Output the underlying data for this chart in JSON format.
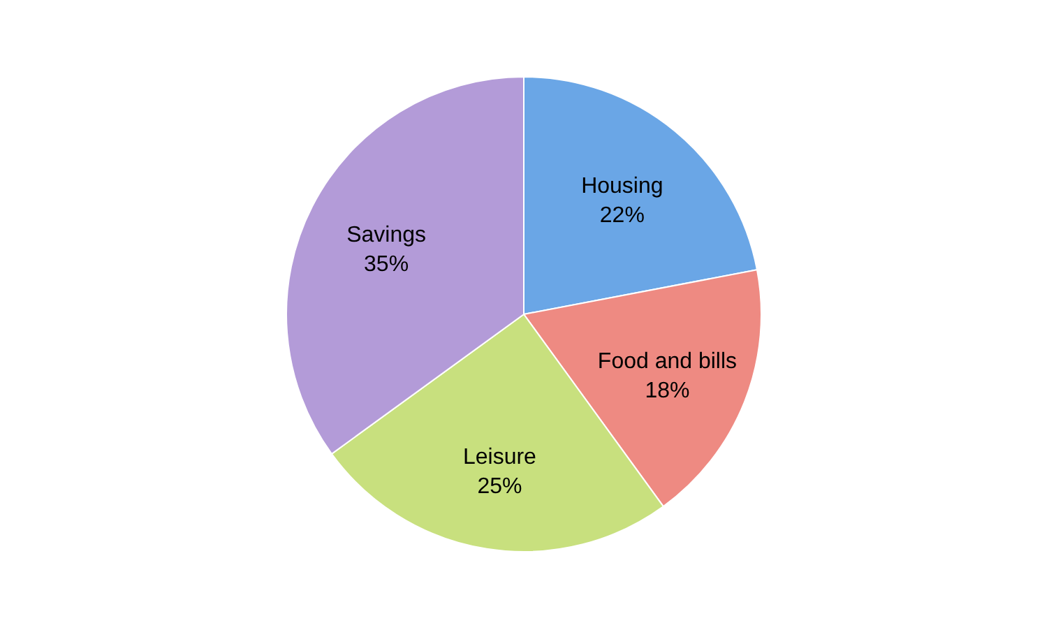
{
  "chart_data": {
    "type": "pie",
    "categories": [
      "Housing",
      "Food and bills",
      "Leisure",
      "Savings"
    ],
    "values": [
      22,
      18,
      25,
      35
    ],
    "value_labels": [
      "22%",
      "18%",
      "25%",
      "35%"
    ],
    "colors": [
      "#6aa6e6",
      "#ee8a82",
      "#c8e07e",
      "#b39bd8"
    ],
    "legend": false
  }
}
